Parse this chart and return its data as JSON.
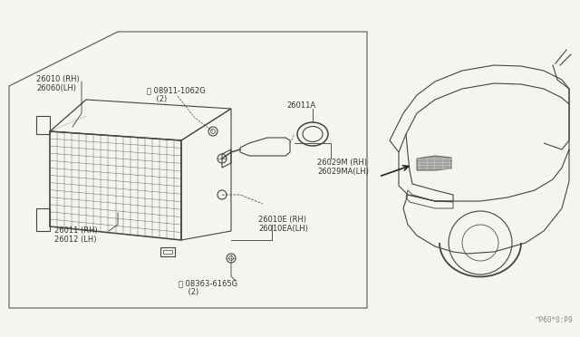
{
  "bg_color": "#f5f5f0",
  "line_color": "#444444",
  "text_color": "#333333",
  "fig_width": 6.4,
  "fig_height": 3.72,
  "watermark_text": "^P60*0:P9",
  "label_26010": "26010 (RH)\n26060(LH)",
  "label_nut": "N 08911-1062G\n    (2)",
  "label_26011A": "26011A",
  "label_26029": "26029M (RH)\n26029MA(LH)",
  "label_26011": "26011 (RH)\n26012 (LH)",
  "label_26010E": "26010E (RH)\n26010EA(LH)",
  "label_screw": "S 08363-6165G\n    (2)"
}
